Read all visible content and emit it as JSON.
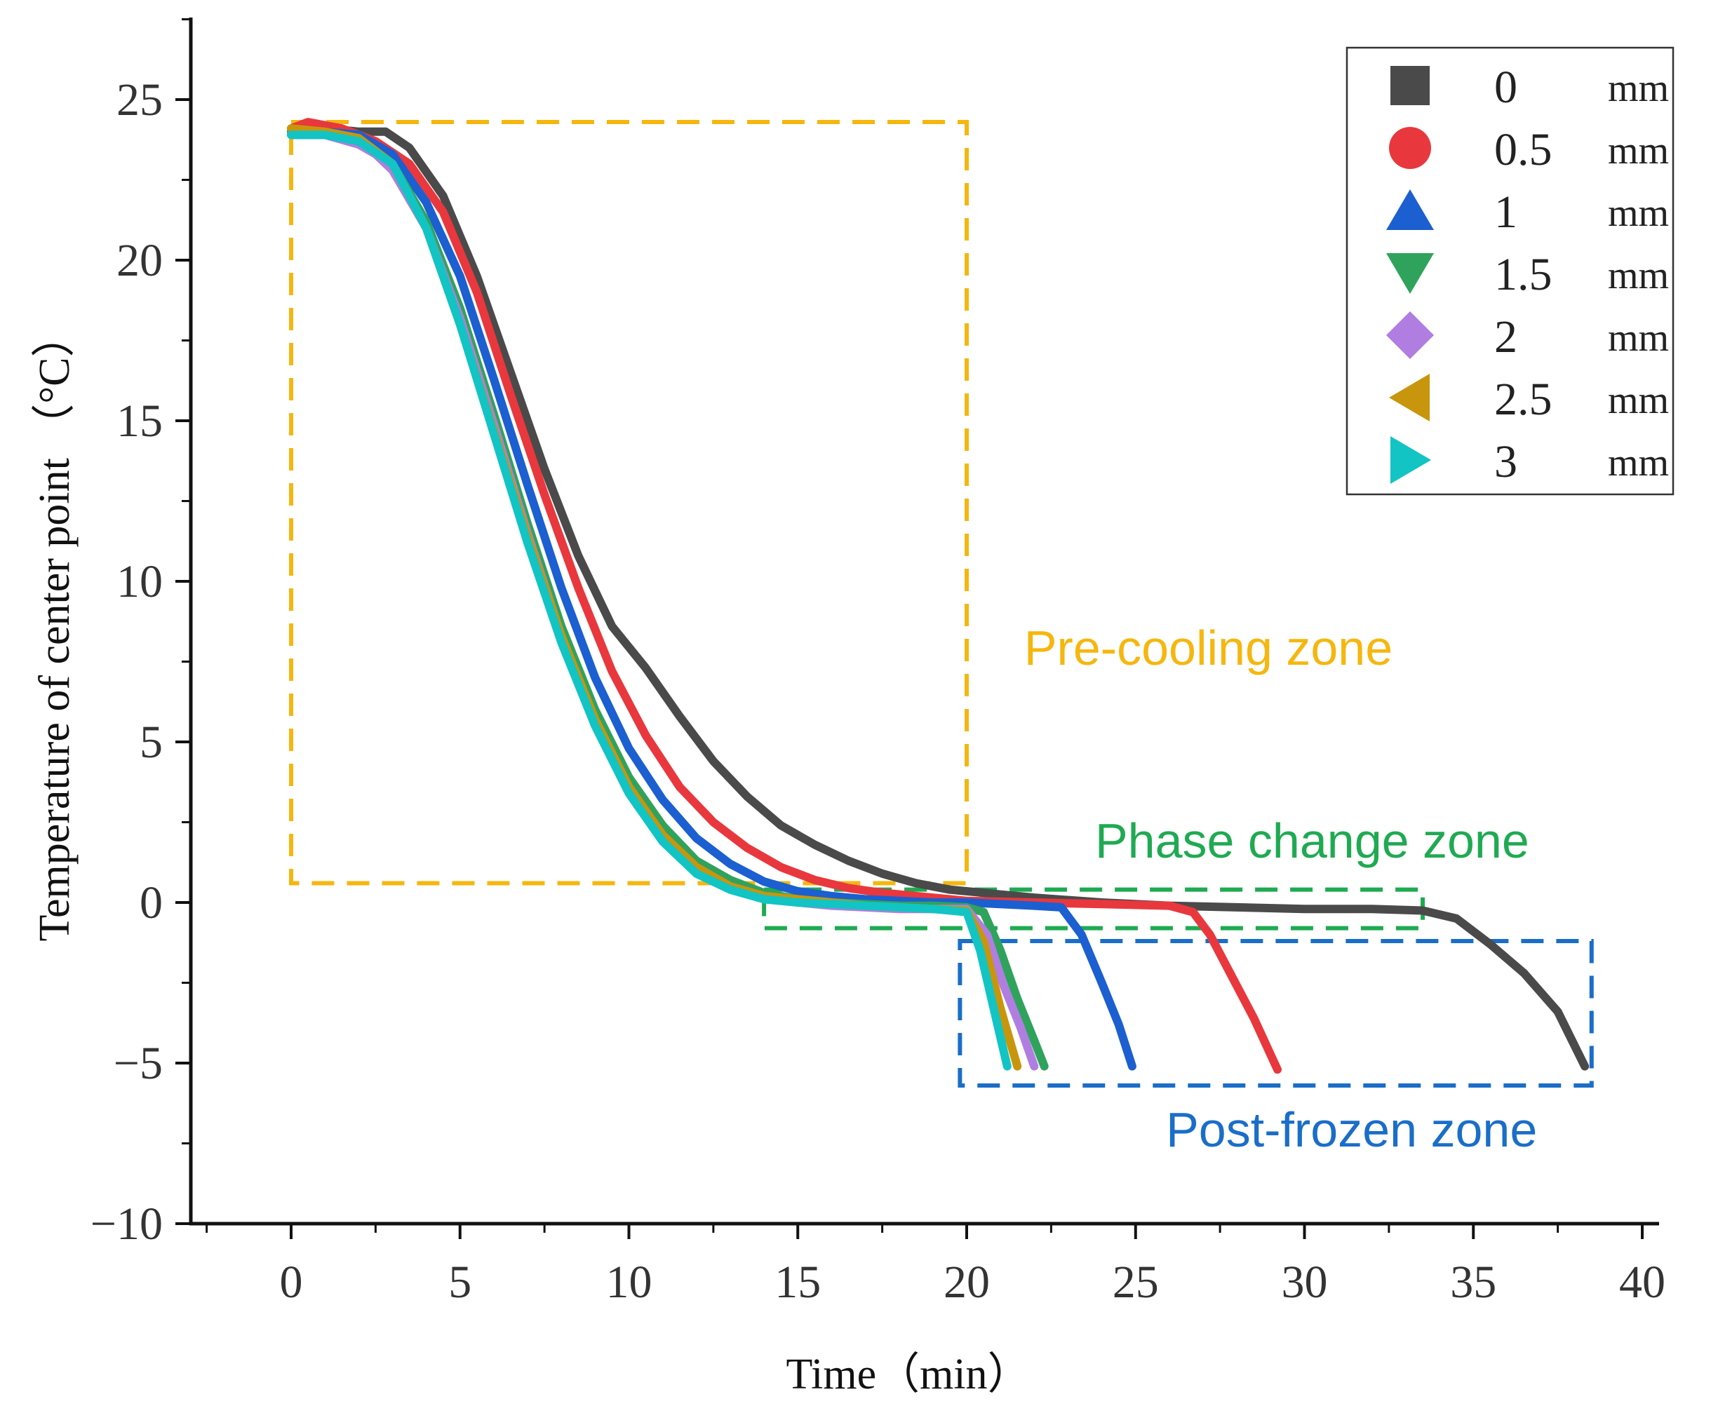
{
  "chart_data": {
    "type": "line",
    "xlabel": "Time（min）",
    "ylabel": "Temperature of center point （°C）",
    "xlim": [
      -3,
      41
    ],
    "ylim": [
      -10,
      27.5
    ],
    "x_ticks": [
      0,
      5,
      10,
      15,
      20,
      25,
      30,
      35,
      40
    ],
    "x_tick_labels": [
      "0",
      "5",
      "10",
      "15",
      "20",
      "25",
      "30",
      "35",
      "40"
    ],
    "y_ticks": [
      -10,
      -5,
      0,
      5,
      10,
      15,
      20,
      25
    ],
    "y_tick_labels": [
      "−10",
      "−5",
      "0",
      "5",
      "10",
      "15",
      "20",
      "25"
    ],
    "legend_position": "top-right",
    "series": [
      {
        "name": "0",
        "unit": "mm",
        "color": "#4a4a4a",
        "marker": "square",
        "x": [
          0,
          1,
          2,
          2.8,
          3.5,
          4.5,
          5.5,
          6.5,
          7.5,
          8.5,
          9.5,
          10.5,
          11.5,
          12.5,
          13.5,
          14.5,
          15.5,
          16.5,
          17.5,
          18.5,
          19.5,
          20.5,
          22,
          24,
          26,
          28,
          30,
          32,
          33.5,
          34.5,
          35.5,
          36.5,
          37.5,
          38.3
        ],
        "y": [
          24.0,
          24.1,
          24.0,
          24.0,
          23.5,
          22.0,
          19.5,
          16.5,
          13.5,
          10.8,
          8.6,
          7.3,
          5.8,
          4.4,
          3.3,
          2.4,
          1.8,
          1.3,
          0.9,
          0.6,
          0.4,
          0.3,
          0.15,
          0.0,
          -0.1,
          -0.15,
          -0.2,
          -0.2,
          -0.25,
          -0.5,
          -1.3,
          -2.2,
          -3.4,
          -5.1
        ]
      },
      {
        "name": "0.5",
        "unit": "mm",
        "color": "#e8383d",
        "marker": "circle",
        "x": [
          0,
          0.5,
          1.5,
          2.5,
          3.5,
          4.5,
          5.5,
          6.5,
          7.5,
          8.5,
          9.5,
          10.5,
          11.5,
          12.5,
          13.5,
          14.5,
          15.5,
          16.5,
          17.5,
          18.5,
          20,
          22,
          24,
          26,
          26.7,
          27.2,
          27.8,
          28.5,
          29.2
        ],
        "y": [
          24.1,
          24.3,
          24.1,
          23.7,
          23.0,
          21.5,
          19.0,
          15.8,
          12.7,
          9.8,
          7.2,
          5.2,
          3.6,
          2.5,
          1.7,
          1.1,
          0.7,
          0.45,
          0.3,
          0.2,
          0.05,
          0.0,
          -0.05,
          -0.1,
          -0.3,
          -1.0,
          -2.2,
          -3.6,
          -5.2
        ]
      },
      {
        "name": "1",
        "unit": "mm",
        "color": "#1b5fd1",
        "marker": "triangle-up",
        "x": [
          0,
          1,
          2,
          3,
          4,
          5,
          6,
          7,
          8,
          9,
          10,
          11,
          12,
          13,
          14,
          15,
          16,
          17,
          18,
          19,
          20,
          21,
          22,
          22.8,
          23.4,
          24,
          24.5,
          24.9
        ],
        "y": [
          24.0,
          24.0,
          23.9,
          23.3,
          21.8,
          19.5,
          16.3,
          13.0,
          9.8,
          7.0,
          4.8,
          3.2,
          2.0,
          1.2,
          0.65,
          0.35,
          0.2,
          0.1,
          0.05,
          0.0,
          0.0,
          -0.05,
          -0.1,
          -0.15,
          -1.0,
          -2.5,
          -3.8,
          -5.1
        ]
      },
      {
        "name": "1.5",
        "unit": "mm",
        "color": "#2fa35c",
        "marker": "triangle-down",
        "x": [
          0,
          1,
          2,
          3,
          4,
          5,
          6,
          7,
          8,
          9,
          10,
          11,
          12,
          13,
          14,
          15,
          16,
          17,
          18,
          19,
          20,
          20.5,
          21,
          21.5,
          22,
          22.3
        ],
        "y": [
          24.0,
          24.0,
          23.8,
          23.0,
          21.2,
          18.5,
          15.2,
          11.8,
          8.6,
          6.0,
          3.9,
          2.4,
          1.3,
          0.7,
          0.3,
          0.1,
          0.0,
          -0.05,
          -0.1,
          -0.1,
          -0.15,
          -0.3,
          -1.5,
          -3.0,
          -4.3,
          -5.1
        ]
      },
      {
        "name": "2",
        "unit": "mm",
        "color": "#b07ee0",
        "marker": "diamond",
        "x": [
          0,
          1,
          2,
          2.5,
          3,
          4,
          5,
          6,
          7,
          8,
          9,
          10,
          11,
          12,
          13,
          14,
          15,
          16,
          17,
          18,
          19,
          20,
          20.6,
          21.1,
          21.6,
          22
        ],
        "y": [
          23.9,
          23.9,
          23.6,
          23.3,
          22.8,
          21.0,
          18.2,
          14.9,
          11.5,
          8.3,
          5.7,
          3.6,
          2.1,
          1.1,
          0.5,
          0.2,
          0.0,
          -0.1,
          -0.15,
          -0.2,
          -0.2,
          -0.2,
          -1.0,
          -2.6,
          -3.9,
          -5.1
        ]
      },
      {
        "name": "2.5",
        "unit": "mm",
        "color": "#c8960c",
        "marker": "triangle-left",
        "x": [
          0,
          1,
          2,
          3,
          4,
          5,
          6,
          7,
          8,
          9,
          10,
          11,
          12,
          13,
          14,
          15,
          16,
          17,
          18,
          19,
          20,
          20.5,
          21,
          21.5
        ],
        "y": [
          24.1,
          24.0,
          23.8,
          23.0,
          21.0,
          18.0,
          14.7,
          11.4,
          8.3,
          5.7,
          3.6,
          2.1,
          1.1,
          0.5,
          0.2,
          0.1,
          0.0,
          -0.1,
          -0.15,
          -0.2,
          -0.25,
          -1.2,
          -3.3,
          -5.1
        ]
      },
      {
        "name": "3",
        "unit": "mm",
        "color": "#12c4c4",
        "marker": "triangle-right",
        "x": [
          0,
          1,
          2,
          3,
          4,
          5,
          6,
          7,
          8,
          9,
          10,
          11,
          12,
          13,
          14,
          15,
          16,
          17,
          18,
          19,
          20,
          20.4,
          20.8,
          21.2
        ],
        "y": [
          23.9,
          23.9,
          23.7,
          23.0,
          21.0,
          18.0,
          14.6,
          11.2,
          8.1,
          5.5,
          3.4,
          1.9,
          0.9,
          0.4,
          0.1,
          0.0,
          -0.05,
          -0.1,
          -0.15,
          -0.2,
          -0.3,
          -1.5,
          -3.3,
          -5.1
        ]
      }
    ],
    "zones": [
      {
        "label": "Pre-cooling zone",
        "color": "#f5b70f",
        "x0": 0,
        "x1": 20,
        "y0": 0.6,
        "y1": 24.3,
        "label_x": 21.7,
        "label_y": 7.4
      },
      {
        "label": "Phase change zone",
        "color": "#1faa52",
        "x0": 14,
        "x1": 33.5,
        "y0": -0.8,
        "y1": 0.4,
        "label_x": 23.8,
        "label_y": 1.4
      },
      {
        "label": "Post-frozen zone",
        "color": "#1a6ec8",
        "x0": 19.8,
        "x1": 38.5,
        "y0": -5.7,
        "y1": -1.2,
        "label_x": 25.9,
        "label_y": -7.6
      }
    ]
  }
}
